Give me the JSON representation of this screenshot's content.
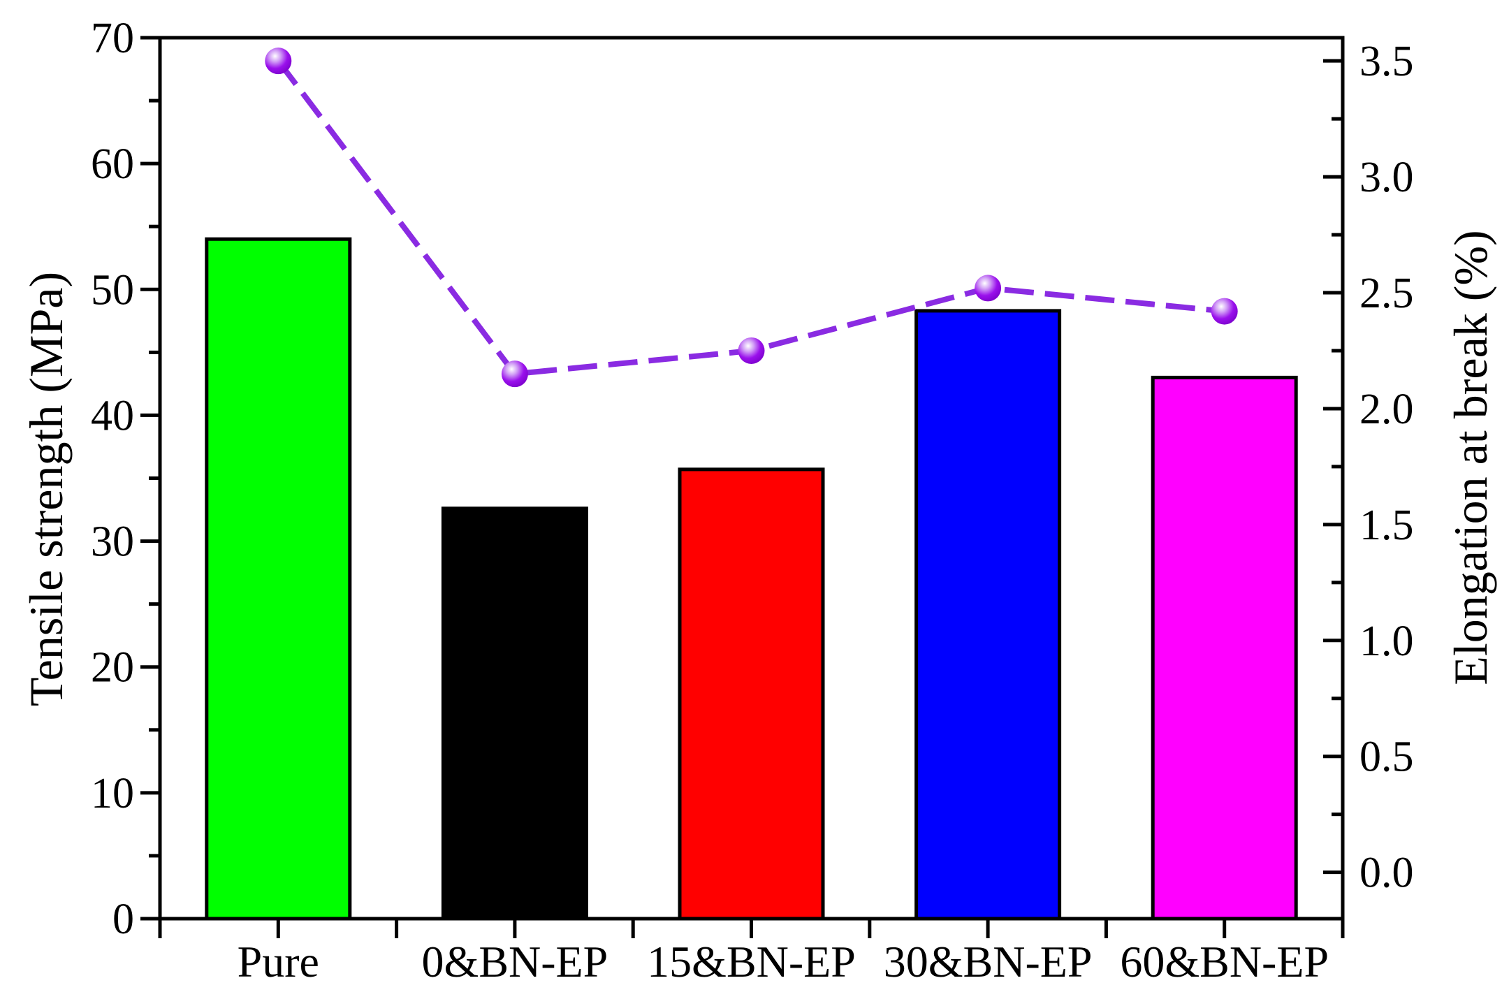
{
  "figure": {
    "background": "#FFFFFF",
    "text_color": "#000000",
    "frame_color": "#000000"
  },
  "chart_data": {
    "type": "bar",
    "title": "",
    "grid": false,
    "legend": null,
    "categories": [
      "Pure",
      "0&BN-EP",
      "15&BN-EP",
      "30&BN-EP",
      "60&BN-EP"
    ],
    "series": [
      {
        "name": "Tensile strength",
        "type": "bar",
        "axis": "left",
        "values": [
          54.0,
          32.6,
          35.7,
          48.3,
          43.0
        ],
        "bar_colors": [
          "#00FF00",
          "#000000",
          "#FF0000",
          "#0000FF",
          "#FF00FF"
        ],
        "bar_outline": "#000000"
      },
      {
        "name": "Elongation at break",
        "type": "line",
        "axis": "right",
        "values": [
          3.5,
          2.15,
          2.25,
          2.52,
          2.42
        ],
        "line_color": "#8A2BE2",
        "line_style": "dashed",
        "marker": "sphere",
        "marker_color": "#9B30FF"
      }
    ],
    "left_axis": {
      "label": "Tensile strength (MPa)",
      "min": 0,
      "max": 70,
      "major_ticks": [
        0,
        10,
        20,
        30,
        40,
        50,
        60,
        70
      ],
      "tick_labels": [
        "0",
        "10",
        "20",
        "30",
        "40",
        "50",
        "60",
        "70"
      ],
      "minor_tick_step": 5
    },
    "right_axis": {
      "label": "Elongation at break (%)",
      "min": -0.2,
      "max": 3.6,
      "major_ticks": [
        0,
        0.5,
        1.0,
        1.5,
        2.0,
        2.5,
        3.0,
        3.5
      ],
      "tick_labels": [
        "0.0",
        "0.5",
        "1.0",
        "1.5",
        "2.0",
        "2.5",
        "3.0",
        "3.5"
      ],
      "minor_tick_step": 0.25
    },
    "x_axis": {
      "boundary_ticks": true
    }
  }
}
